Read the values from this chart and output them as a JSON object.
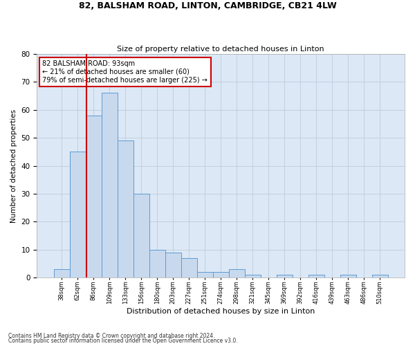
{
  "title_line1": "82, BALSHAM ROAD, LINTON, CAMBRIDGE, CB21 4LW",
  "title_line2": "Size of property relative to detached houses in Linton",
  "xlabel": "Distribution of detached houses by size in Linton",
  "ylabel": "Number of detached properties",
  "footnote1": "Contains HM Land Registry data © Crown copyright and database right 2024.",
  "footnote2": "Contains public sector information licensed under the Open Government Licence v3.0.",
  "bin_labels": [
    "38sqm",
    "62sqm",
    "86sqm",
    "109sqm",
    "133sqm",
    "156sqm",
    "180sqm",
    "203sqm",
    "227sqm",
    "251sqm",
    "274sqm",
    "298sqm",
    "321sqm",
    "345sqm",
    "369sqm",
    "392sqm",
    "416sqm",
    "439sqm",
    "463sqm",
    "486sqm",
    "510sqm"
  ],
  "bar_values": [
    3,
    45,
    58,
    66,
    49,
    30,
    10,
    9,
    7,
    2,
    2,
    3,
    1,
    0,
    1,
    0,
    1,
    0,
    1,
    0,
    1
  ],
  "bar_color": "#c8d9ed",
  "bar_edge_color": "#5b9bd5",
  "grid_color": "#c0cfe0",
  "background_color": "#dce8f5",
  "vline_x_index": 1.55,
  "vline_color": "#cc0000",
  "annotation_line1": "82 BALSHAM ROAD: 93sqm",
  "annotation_line2": "← 21% of detached houses are smaller (60)",
  "annotation_line3": "79% of semi-detached houses are larger (225) →",
  "annotation_box_fc": "#ffffff",
  "annotation_box_ec": "#cc0000",
  "ylim_max": 80,
  "yticks": [
    0,
    10,
    20,
    30,
    40,
    50,
    60,
    70,
    80
  ]
}
